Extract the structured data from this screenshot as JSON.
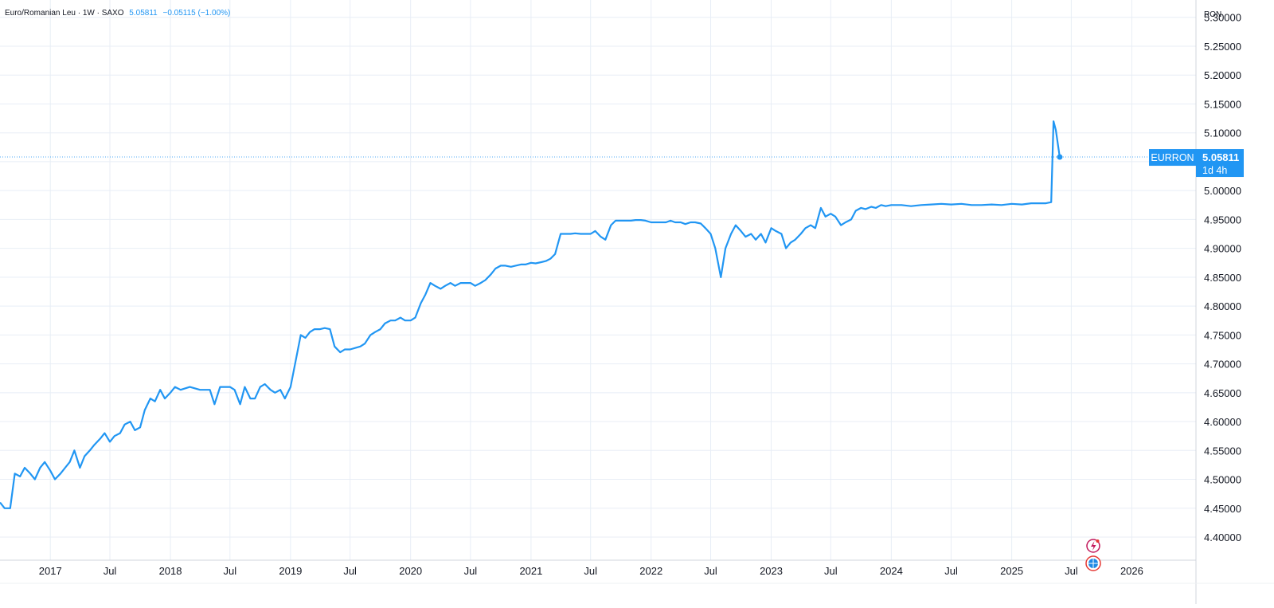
{
  "legend": {
    "symbol_text": "Euro/Romanian Leu · 1W · SAXO",
    "last_value": "5.05811",
    "change": "−0.05115 (−1.00%)"
  },
  "price_axis": {
    "currency": "RON"
  },
  "last_price_label": {
    "symbol": "EURRON",
    "price": "5.05811",
    "countdown": "1d 4h"
  },
  "chart_data": {
    "type": "line",
    "title": "",
    "xlabel": "",
    "ylabel": "",
    "ylim": [
      4.36,
      5.33
    ],
    "xlim": [
      "2016-08-01",
      "2026-07-15"
    ],
    "grid": true,
    "color": "#2196f3",
    "x_tick_labels": [
      {
        "date": "2017-01-01",
        "label": "2017"
      },
      {
        "date": "2017-07-01",
        "label": "Jul"
      },
      {
        "date": "2018-01-01",
        "label": "2018"
      },
      {
        "date": "2018-07-01",
        "label": "Jul"
      },
      {
        "date": "2019-01-01",
        "label": "2019"
      },
      {
        "date": "2019-07-01",
        "label": "Jul"
      },
      {
        "date": "2020-01-01",
        "label": "2020"
      },
      {
        "date": "2020-07-01",
        "label": "Jul"
      },
      {
        "date": "2021-01-01",
        "label": "2021"
      },
      {
        "date": "2021-07-01",
        "label": "Jul"
      },
      {
        "date": "2022-01-01",
        "label": "2022"
      },
      {
        "date": "2022-07-01",
        "label": "Jul"
      },
      {
        "date": "2023-01-01",
        "label": "2023"
      },
      {
        "date": "2023-07-01",
        "label": "Jul"
      },
      {
        "date": "2024-01-01",
        "label": "2024"
      },
      {
        "date": "2024-07-01",
        "label": "Jul"
      },
      {
        "date": "2025-01-01",
        "label": "2025"
      },
      {
        "date": "2025-07-01",
        "label": "Jul"
      },
      {
        "date": "2026-01-01",
        "label": "2026"
      }
    ],
    "y_tick_labels": [
      "4.40000",
      "4.45000",
      "4.50000",
      "4.55000",
      "4.60000",
      "4.65000",
      "4.70000",
      "4.75000",
      "4.80000",
      "4.85000",
      "4.90000",
      "4.95000",
      "5.00000",
      "5.05000",
      "5.10000",
      "5.15000",
      "5.20000",
      "5.25000",
      "5.30000"
    ],
    "series": [
      {
        "points": [
          [
            "2016-08-01",
            4.46
          ],
          [
            "2016-08-15",
            4.45
          ],
          [
            "2016-09-01",
            4.45
          ],
          [
            "2016-09-15",
            4.51
          ],
          [
            "2016-10-01",
            4.505
          ],
          [
            "2016-10-15",
            4.52
          ],
          [
            "2016-11-01",
            4.51
          ],
          [
            "2016-11-15",
            4.5
          ],
          [
            "2016-12-01",
            4.52
          ],
          [
            "2016-12-15",
            4.53
          ],
          [
            "2017-01-01",
            4.515
          ],
          [
            "2017-01-15",
            4.5
          ],
          [
            "2017-02-01",
            4.51
          ],
          [
            "2017-02-15",
            4.52
          ],
          [
            "2017-03-01",
            4.53
          ],
          [
            "2017-03-15",
            4.55
          ],
          [
            "2017-04-01",
            4.52
          ],
          [
            "2017-04-15",
            4.54
          ],
          [
            "2017-05-01",
            4.55
          ],
          [
            "2017-05-15",
            4.56
          ],
          [
            "2017-06-01",
            4.57
          ],
          [
            "2017-06-15",
            4.58
          ],
          [
            "2017-07-01",
            4.565
          ],
          [
            "2017-07-15",
            4.575
          ],
          [
            "2017-08-01",
            4.58
          ],
          [
            "2017-08-15",
            4.595
          ],
          [
            "2017-09-01",
            4.6
          ],
          [
            "2017-09-15",
            4.585
          ],
          [
            "2017-10-01",
            4.59
          ],
          [
            "2017-10-15",
            4.62
          ],
          [
            "2017-11-01",
            4.64
          ],
          [
            "2017-11-15",
            4.635
          ],
          [
            "2017-12-01",
            4.655
          ],
          [
            "2017-12-15",
            4.64
          ],
          [
            "2018-01-01",
            4.65
          ],
          [
            "2018-01-15",
            4.66
          ],
          [
            "2018-02-01",
            4.655
          ],
          [
            "2018-03-01",
            4.66
          ],
          [
            "2018-04-01",
            4.655
          ],
          [
            "2018-05-01",
            4.655
          ],
          [
            "2018-05-15",
            4.63
          ],
          [
            "2018-06-01",
            4.66
          ],
          [
            "2018-07-01",
            4.66
          ],
          [
            "2018-07-15",
            4.655
          ],
          [
            "2018-08-01",
            4.63
          ],
          [
            "2018-08-15",
            4.66
          ],
          [
            "2018-09-01",
            4.64
          ],
          [
            "2018-09-15",
            4.64
          ],
          [
            "2018-10-01",
            4.66
          ],
          [
            "2018-10-15",
            4.665
          ],
          [
            "2018-11-01",
            4.655
          ],
          [
            "2018-11-15",
            4.65
          ],
          [
            "2018-12-01",
            4.655
          ],
          [
            "2018-12-15",
            4.64
          ],
          [
            "2019-01-01",
            4.66
          ],
          [
            "2019-01-15",
            4.7
          ],
          [
            "2019-02-01",
            4.75
          ],
          [
            "2019-02-15",
            4.745
          ],
          [
            "2019-03-01",
            4.755
          ],
          [
            "2019-03-15",
            4.76
          ],
          [
            "2019-04-01",
            4.76
          ],
          [
            "2019-04-15",
            4.762
          ],
          [
            "2019-05-01",
            4.76
          ],
          [
            "2019-05-15",
            4.73
          ],
          [
            "2019-06-01",
            4.72
          ],
          [
            "2019-06-15",
            4.725
          ],
          [
            "2019-07-01",
            4.725
          ],
          [
            "2019-08-01",
            4.73
          ],
          [
            "2019-08-15",
            4.735
          ],
          [
            "2019-09-01",
            4.75
          ],
          [
            "2019-09-15",
            4.755
          ],
          [
            "2019-10-01",
            4.76
          ],
          [
            "2019-10-15",
            4.77
          ],
          [
            "2019-11-01",
            4.775
          ],
          [
            "2019-11-15",
            4.775
          ],
          [
            "2019-12-01",
            4.78
          ],
          [
            "2019-12-15",
            4.775
          ],
          [
            "2020-01-01",
            4.775
          ],
          [
            "2020-01-15",
            4.78
          ],
          [
            "2020-02-01",
            4.805
          ],
          [
            "2020-02-15",
            4.82
          ],
          [
            "2020-03-01",
            4.84
          ],
          [
            "2020-03-15",
            4.835
          ],
          [
            "2020-04-01",
            4.83
          ],
          [
            "2020-04-15",
            4.835
          ],
          [
            "2020-05-01",
            4.84
          ],
          [
            "2020-05-15",
            4.835
          ],
          [
            "2020-06-01",
            4.84
          ],
          [
            "2020-06-15",
            4.84
          ],
          [
            "2020-07-01",
            4.84
          ],
          [
            "2020-07-15",
            4.835
          ],
          [
            "2020-08-01",
            4.84
          ],
          [
            "2020-08-15",
            4.845
          ],
          [
            "2020-09-01",
            4.855
          ],
          [
            "2020-09-15",
            4.865
          ],
          [
            "2020-10-01",
            4.87
          ],
          [
            "2020-10-15",
            4.87
          ],
          [
            "2020-11-01",
            4.868
          ],
          [
            "2020-11-15",
            4.87
          ],
          [
            "2020-12-01",
            4.872
          ],
          [
            "2020-12-15",
            4.872
          ],
          [
            "2021-01-01",
            4.875
          ],
          [
            "2021-01-15",
            4.874
          ],
          [
            "2021-02-01",
            4.876
          ],
          [
            "2021-02-15",
            4.878
          ],
          [
            "2021-03-01",
            4.882
          ],
          [
            "2021-03-15",
            4.89
          ],
          [
            "2021-04-01",
            4.925
          ],
          [
            "2021-04-15",
            4.925
          ],
          [
            "2021-05-01",
            4.925
          ],
          [
            "2021-05-15",
            4.926
          ],
          [
            "2021-06-01",
            4.925
          ],
          [
            "2021-06-15",
            4.925
          ],
          [
            "2021-07-01",
            4.925
          ],
          [
            "2021-07-15",
            4.93
          ],
          [
            "2021-08-01",
            4.92
          ],
          [
            "2021-08-15",
            4.915
          ],
          [
            "2021-09-01",
            4.94
          ],
          [
            "2021-09-15",
            4.948
          ],
          [
            "2021-10-01",
            4.948
          ],
          [
            "2021-10-15",
            4.948
          ],
          [
            "2021-11-01",
            4.948
          ],
          [
            "2021-11-15",
            4.949
          ],
          [
            "2021-12-01",
            4.949
          ],
          [
            "2021-12-15",
            4.948
          ],
          [
            "2022-01-01",
            4.945
          ],
          [
            "2022-01-15",
            4.945
          ],
          [
            "2022-02-01",
            4.945
          ],
          [
            "2022-02-15",
            4.945
          ],
          [
            "2022-03-01",
            4.948
          ],
          [
            "2022-03-15",
            4.945
          ],
          [
            "2022-04-01",
            4.945
          ],
          [
            "2022-04-15",
            4.942
          ],
          [
            "2022-05-01",
            4.945
          ],
          [
            "2022-05-15",
            4.945
          ],
          [
            "2022-06-01",
            4.943
          ],
          [
            "2022-06-15",
            4.935
          ],
          [
            "2022-07-01",
            4.925
          ],
          [
            "2022-07-15",
            4.9
          ],
          [
            "2022-08-01",
            4.85
          ],
          [
            "2022-08-15",
            4.9
          ],
          [
            "2022-09-01",
            4.925
          ],
          [
            "2022-09-15",
            4.94
          ],
          [
            "2022-10-01",
            4.93
          ],
          [
            "2022-10-15",
            4.92
          ],
          [
            "2022-11-01",
            4.925
          ],
          [
            "2022-11-15",
            4.915
          ],
          [
            "2022-12-01",
            4.925
          ],
          [
            "2022-12-15",
            4.91
          ],
          [
            "2023-01-01",
            4.935
          ],
          [
            "2023-01-15",
            4.93
          ],
          [
            "2023-02-01",
            4.925
          ],
          [
            "2023-02-15",
            4.9
          ],
          [
            "2023-03-01",
            4.91
          ],
          [
            "2023-03-15",
            4.915
          ],
          [
            "2023-04-01",
            4.925
          ],
          [
            "2023-04-15",
            4.935
          ],
          [
            "2023-05-01",
            4.94
          ],
          [
            "2023-05-15",
            4.935
          ],
          [
            "2023-06-01",
            4.97
          ],
          [
            "2023-06-15",
            4.955
          ],
          [
            "2023-07-01",
            4.96
          ],
          [
            "2023-07-15",
            4.955
          ],
          [
            "2023-08-01",
            4.94
          ],
          [
            "2023-08-15",
            4.945
          ],
          [
            "2023-09-01",
            4.95
          ],
          [
            "2023-09-15",
            4.965
          ],
          [
            "2023-10-01",
            4.97
          ],
          [
            "2023-10-15",
            4.968
          ],
          [
            "2023-11-01",
            4.972
          ],
          [
            "2023-11-15",
            4.97
          ],
          [
            "2023-12-01",
            4.975
          ],
          [
            "2023-12-15",
            4.973
          ],
          [
            "2024-01-01",
            4.975
          ],
          [
            "2024-02-01",
            4.975
          ],
          [
            "2024-03-01",
            4.973
          ],
          [
            "2024-04-01",
            4.975
          ],
          [
            "2024-05-01",
            4.976
          ],
          [
            "2024-06-01",
            4.977
          ],
          [
            "2024-07-01",
            4.976
          ],
          [
            "2024-08-01",
            4.977
          ],
          [
            "2024-09-01",
            4.975
          ],
          [
            "2024-10-01",
            4.975
          ],
          [
            "2024-11-01",
            4.976
          ],
          [
            "2024-12-01",
            4.975
          ],
          [
            "2025-01-01",
            4.977
          ],
          [
            "2025-02-01",
            4.976
          ],
          [
            "2025-03-01",
            4.978
          ],
          [
            "2025-03-15",
            4.978
          ],
          [
            "2025-04-15",
            4.978
          ],
          [
            "2025-05-01",
            4.98
          ],
          [
            "2025-05-08",
            5.12
          ],
          [
            "2025-05-15",
            5.105
          ],
          [
            "2025-05-27",
            5.058
          ]
        ]
      }
    ],
    "last_point": [
      "2025-05-27",
      5.05811
    ]
  }
}
